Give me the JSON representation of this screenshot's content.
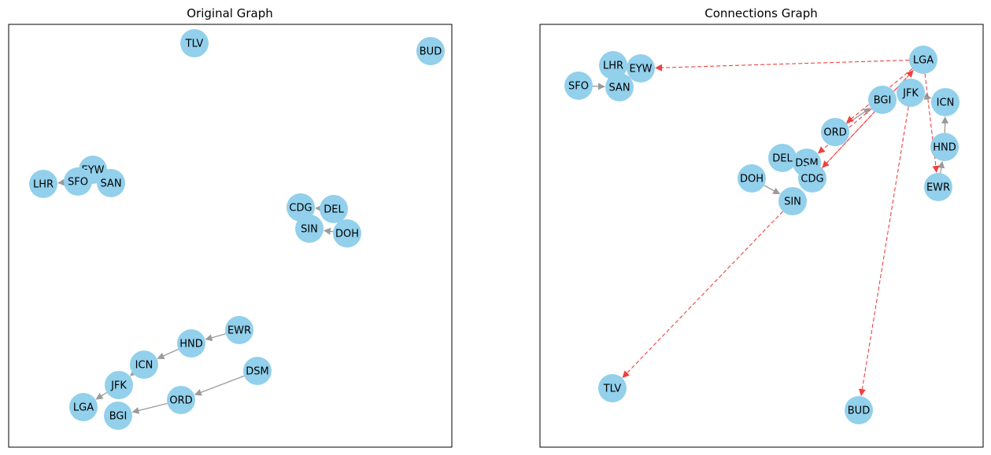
{
  "colors": {
    "node": "#92d0ec",
    "edge": "#9a9a9a",
    "connection_edge": "#f04040",
    "frame": "#000000"
  },
  "panels": [
    {
      "title": "Original Graph",
      "nodes": [
        "TLV",
        "BUD",
        "EYW",
        "LHR",
        "SFO",
        "SAN",
        "CDG",
        "DEL",
        "SIN",
        "DOH",
        "EWR",
        "HND",
        "ICN",
        "DSM",
        "JFK",
        "ORD",
        "LGA",
        "BGI"
      ],
      "edges": [
        {
          "from": "SFO",
          "to": "LHR",
          "style": "solid"
        },
        {
          "from": "DEL",
          "to": "CDG",
          "style": "solid"
        },
        {
          "from": "DOH",
          "to": "SIN",
          "style": "solid"
        },
        {
          "from": "EWR",
          "to": "HND",
          "style": "solid"
        },
        {
          "from": "HND",
          "to": "ICN",
          "style": "solid"
        },
        {
          "from": "ICN",
          "to": "JFK",
          "style": "solid"
        },
        {
          "from": "JFK",
          "to": "LGA",
          "style": "solid"
        },
        {
          "from": "DSM",
          "to": "ORD",
          "style": "solid"
        },
        {
          "from": "ORD",
          "to": "BGI",
          "style": "solid"
        }
      ]
    },
    {
      "title": "Connections Graph",
      "nodes": [
        "LHR",
        "EYW",
        "SFO",
        "SAN",
        "LGA",
        "JFK",
        "ICN",
        "BGI",
        "ORD",
        "HND",
        "DEL",
        "DSM",
        "CDG",
        "DOH",
        "EWR",
        "SIN",
        "TLV",
        "BUD"
      ],
      "edges": [
        {
          "from": "SFO",
          "to": "SAN",
          "style": "solid"
        },
        {
          "from": "SAN",
          "to": "LHR",
          "style": "solid"
        },
        {
          "from": "ORD",
          "to": "BGI",
          "style": "solid"
        },
        {
          "from": "DSM",
          "to": "DEL",
          "style": "solid"
        },
        {
          "from": "DOH",
          "to": "SIN",
          "style": "solid"
        },
        {
          "from": "HND",
          "to": "ICN",
          "style": "solid"
        },
        {
          "from": "EWR",
          "to": "HND",
          "style": "solid"
        },
        {
          "from": "JFK",
          "to": "ICN",
          "style": "solid"
        },
        {
          "from": "LGA",
          "to": "EYW",
          "style": "dashed"
        },
        {
          "from": "LGA",
          "to": "EWR",
          "style": "dashed"
        },
        {
          "from": "LGA",
          "to": "ORD",
          "style": "dashed"
        },
        {
          "from": "LGA",
          "to": "CDG",
          "style": "dashed"
        },
        {
          "from": "BGI",
          "to": "DSM",
          "style": "dashed"
        },
        {
          "from": "CDG",
          "to": "LGA",
          "style": "dashed"
        },
        {
          "from": "JFK",
          "to": "BUD",
          "style": "dashed"
        },
        {
          "from": "SIN",
          "to": "TLV",
          "style": "dashed"
        }
      ]
    }
  ]
}
